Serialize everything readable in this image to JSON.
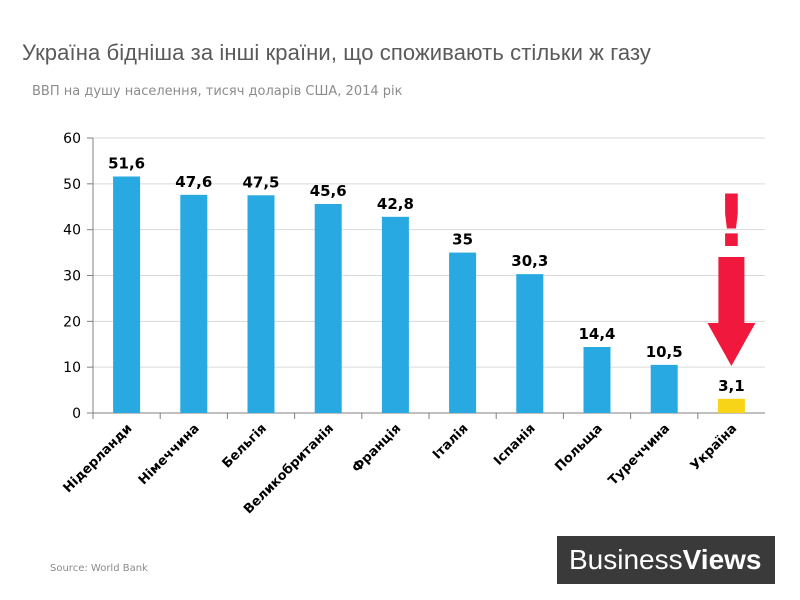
{
  "title": "Україна бідніша за інші країни, що споживають стільки ж газу",
  "subtitle": "ВВП на душу населення, тисяч доларів США, 2014 рік",
  "source": "Source: World Bank",
  "logo": {
    "part1": "Business",
    "part2": "Views"
  },
  "colors": {
    "bar": "#29a9e1",
    "highlight": "#f7d418",
    "alert": "#f0193d",
    "axis": "#808080",
    "grid": "#d9d9d9"
  },
  "chart_data": {
    "type": "bar",
    "title": "Україна бідніша за інші країни, що споживають стільки ж газу",
    "subtitle": "ВВП на душу населення, тисяч доларів США, 2014 рік",
    "xlabel": "",
    "ylabel": "",
    "ylim": [
      0,
      60
    ],
    "yticks": [
      0,
      10,
      20,
      30,
      40,
      50,
      60
    ],
    "grid": true,
    "categories": [
      "Нідерланди",
      "Німеччина",
      "Бельгія",
      "Великобританія",
      "Франція",
      "Італія",
      "Іспанія",
      "Польща",
      "Туреччина",
      "Україна"
    ],
    "values": [
      51.6,
      47.6,
      47.5,
      45.6,
      42.8,
      35,
      30.3,
      14.4,
      10.5,
      3.1
    ],
    "data_labels": [
      "51,6",
      "47,6",
      "47,5",
      "45,6",
      "42,8",
      "35",
      "30,3",
      "14,4",
      "10,5",
      "3,1"
    ],
    "highlight_category": "Україна",
    "annotation": "!"
  }
}
